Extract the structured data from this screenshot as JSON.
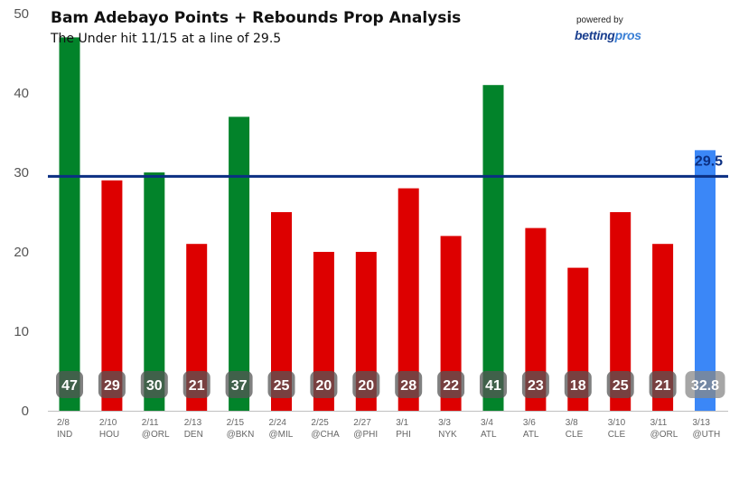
{
  "header": {
    "title": "Bam Adebayo Points + Rebounds Prop Analysis",
    "subtitle": "The Under hit 11/15 at a line of 29.5"
  },
  "brand": {
    "powered_by": "powered by",
    "name_part1": "betting",
    "name_part2": "pros"
  },
  "colors": {
    "over": "#02832a",
    "under": "#dd0000",
    "projection": "#3b87f7",
    "line": "#0b2f82",
    "label_bg_dark": "#555555",
    "label_bg_proj": "#888888"
  },
  "chart_data": {
    "type": "bar",
    "ylim": [
      0,
      50
    ],
    "yticks": [
      0,
      10,
      20,
      30,
      40,
      50
    ],
    "line_value": 29.5,
    "line_label": "29.5",
    "categories": [
      {
        "date": "2/8",
        "opp": "IND"
      },
      {
        "date": "2/10",
        "opp": "HOU"
      },
      {
        "date": "2/11",
        "opp": "@ORL"
      },
      {
        "date": "2/13",
        "opp": "DEN"
      },
      {
        "date": "2/15",
        "opp": "@BKN"
      },
      {
        "date": "2/24",
        "opp": "@MIL"
      },
      {
        "date": "2/25",
        "opp": "@CHA"
      },
      {
        "date": "2/27",
        "opp": "@PHI"
      },
      {
        "date": "3/1",
        "opp": "PHI"
      },
      {
        "date": "3/3",
        "opp": "NYK"
      },
      {
        "date": "3/4",
        "opp": "ATL"
      },
      {
        "date": "3/6",
        "opp": "ATL"
      },
      {
        "date": "3/8",
        "opp": "CLE"
      },
      {
        "date": "3/10",
        "opp": "CLE"
      },
      {
        "date": "3/11",
        "opp": "@ORL"
      },
      {
        "date": "3/13",
        "opp": "@UTH"
      }
    ],
    "values": [
      47,
      29,
      30,
      21,
      37,
      25,
      20,
      20,
      28,
      22,
      41,
      23,
      18,
      25,
      21,
      32.8
    ],
    "value_labels": [
      "47",
      "29",
      "30",
      "21",
      "37",
      "25",
      "20",
      "20",
      "28",
      "22",
      "41",
      "23",
      "18",
      "25",
      "21",
      "32.8"
    ],
    "bar_status": [
      "over",
      "under",
      "over",
      "under",
      "over",
      "under",
      "under",
      "under",
      "under",
      "under",
      "over",
      "under",
      "under",
      "under",
      "under",
      "projection"
    ]
  }
}
